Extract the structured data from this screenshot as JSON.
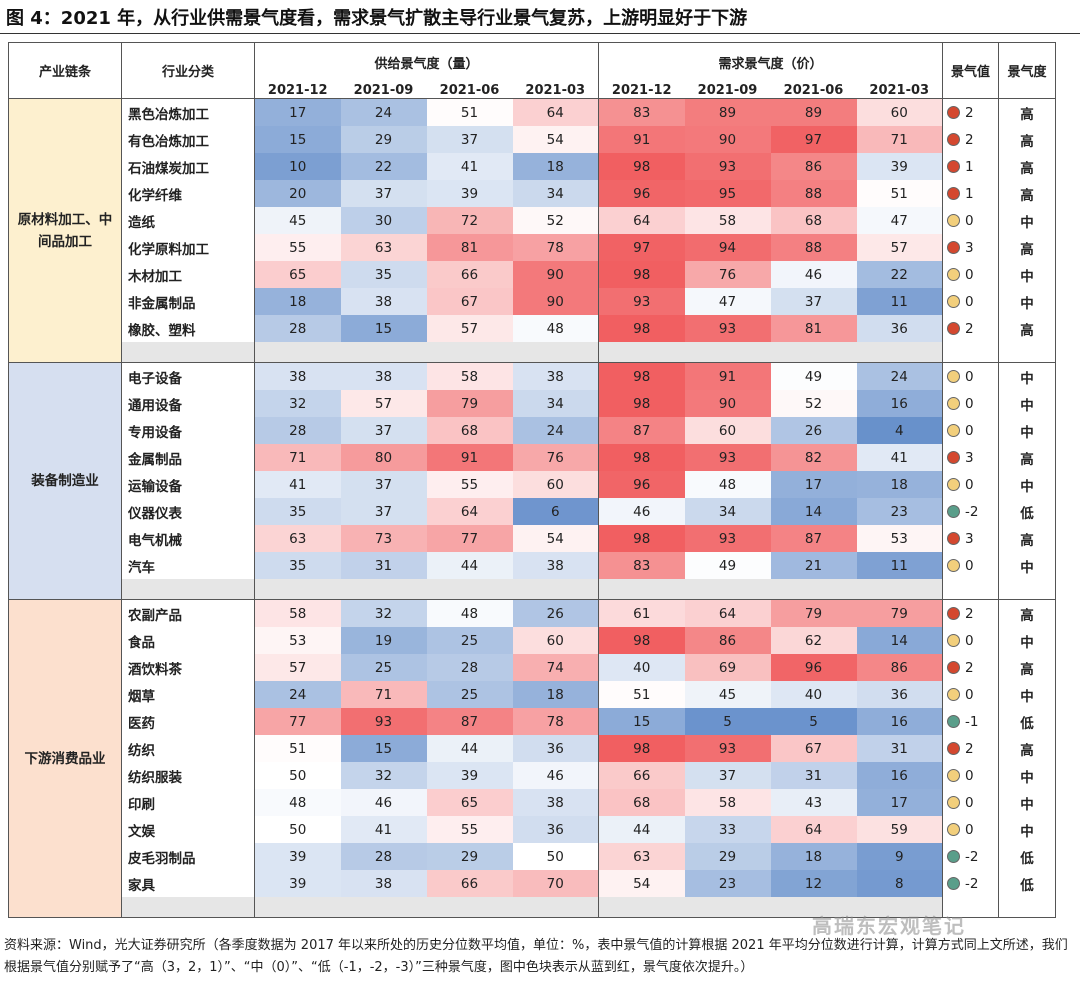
{
  "title": "图 4：2021 年，从行业供需景气度看，需求景气扩散主导行业景气复苏，上游明显好于下游",
  "headers": {
    "chain": "产业链条",
    "industry": "行业分类",
    "supply": "供给景气度（量）",
    "demand": "需求景气度（价）",
    "value": "景气值",
    "level": "景气度",
    "periods": [
      "2021-12",
      "2021-09",
      "2021-06",
      "2021-03"
    ]
  },
  "sections": [
    {
      "name": "原材料加工、中间品加工",
      "theme": "raw",
      "rows": [
        {
          "industry": "黑色冶炼加工",
          "supply": [
            17,
            24,
            51,
            64
          ],
          "demand": [
            83,
            89,
            89,
            60
          ],
          "value": "2",
          "level": "高"
        },
        {
          "industry": "有色冶炼加工",
          "supply": [
            15,
            29,
            37,
            54
          ],
          "demand": [
            91,
            90,
            97,
            71
          ],
          "value": "2",
          "level": "高"
        },
        {
          "industry": "石油煤炭加工",
          "supply": [
            10,
            22,
            41,
            18
          ],
          "demand": [
            98,
            93,
            86,
            39
          ],
          "value": "1",
          "level": "高"
        },
        {
          "industry": "化学纤维",
          "supply": [
            20,
            37,
            39,
            34
          ],
          "demand": [
            96,
            95,
            88,
            51
          ],
          "value": "1",
          "level": "高"
        },
        {
          "industry": "造纸",
          "supply": [
            45,
            30,
            72,
            52
          ],
          "demand": [
            64,
            58,
            68,
            47
          ],
          "value": "0",
          "level": "中"
        },
        {
          "industry": "化学原料加工",
          "supply": [
            55,
            63,
            81,
            78
          ],
          "demand": [
            97,
            94,
            88,
            57
          ],
          "value": "3",
          "level": "高"
        },
        {
          "industry": "木材加工",
          "supply": [
            65,
            35,
            66,
            90
          ],
          "demand": [
            98,
            76,
            46,
            22
          ],
          "value": "0",
          "level": "中"
        },
        {
          "industry": "非金属制品",
          "supply": [
            18,
            38,
            67,
            90
          ],
          "demand": [
            93,
            47,
            37,
            11
          ],
          "value": "0",
          "level": "中"
        },
        {
          "industry": "橡胶、塑料",
          "supply": [
            28,
            15,
            57,
            48
          ],
          "demand": [
            98,
            93,
            81,
            36
          ],
          "value": "2",
          "level": "高"
        }
      ]
    },
    {
      "name": "装备制造业",
      "theme": "equip",
      "rows": [
        {
          "industry": "电子设备",
          "supply": [
            38,
            38,
            58,
            38
          ],
          "demand": [
            98,
            91,
            49,
            24
          ],
          "value": "0",
          "level": "中"
        },
        {
          "industry": "通用设备",
          "supply": [
            32,
            57,
            79,
            34
          ],
          "demand": [
            98,
            90,
            52,
            16
          ],
          "value": "0",
          "level": "中"
        },
        {
          "industry": "专用设备",
          "supply": [
            28,
            37,
            68,
            24
          ],
          "demand": [
            87,
            60,
            26,
            4
          ],
          "value": "0",
          "level": "中"
        },
        {
          "industry": "金属制品",
          "supply": [
            71,
            80,
            91,
            76
          ],
          "demand": [
            98,
            93,
            82,
            41
          ],
          "value": "3",
          "level": "高"
        },
        {
          "industry": "运输设备",
          "supply": [
            41,
            37,
            55,
            60
          ],
          "demand": [
            96,
            48,
            17,
            18
          ],
          "value": "0",
          "level": "中"
        },
        {
          "industry": "仪器仪表",
          "supply": [
            35,
            37,
            64,
            6
          ],
          "demand": [
            46,
            34,
            14,
            23
          ],
          "value": "-2",
          "level": "低"
        },
        {
          "industry": "电气机械",
          "supply": [
            63,
            73,
            77,
            54
          ],
          "demand": [
            98,
            93,
            87,
            53
          ],
          "value": "3",
          "level": "高"
        },
        {
          "industry": "汽车",
          "supply": [
            35,
            31,
            44,
            38
          ],
          "demand": [
            83,
            49,
            21,
            11
          ],
          "value": "0",
          "level": "中"
        }
      ]
    },
    {
      "name": "下游消费品业",
      "theme": "cons",
      "rows": [
        {
          "industry": "农副产品",
          "supply": [
            58,
            32,
            48,
            26
          ],
          "demand": [
            61,
            64,
            79,
            79
          ],
          "value": "2",
          "level": "高"
        },
        {
          "industry": "食品",
          "supply": [
            53,
            19,
            25,
            60
          ],
          "demand": [
            98,
            86,
            62,
            14
          ],
          "value": "0",
          "level": "中"
        },
        {
          "industry": "酒饮料茶",
          "supply": [
            57,
            25,
            28,
            74
          ],
          "demand": [
            40,
            69,
            96,
            86
          ],
          "value": "2",
          "level": "高"
        },
        {
          "industry": "烟草",
          "supply": [
            24,
            71,
            25,
            18
          ],
          "demand": [
            51,
            45,
            40,
            36
          ],
          "value": "0",
          "level": "中"
        },
        {
          "industry": "医药",
          "supply": [
            77,
            93,
            87,
            78
          ],
          "demand": [
            15,
            5,
            5,
            16
          ],
          "value": "-1",
          "level": "低"
        },
        {
          "industry": "纺织",
          "supply": [
            51,
            15,
            44,
            36
          ],
          "demand": [
            98,
            93,
            67,
            31
          ],
          "value": "2",
          "level": "高"
        },
        {
          "industry": "纺织服装",
          "supply": [
            50,
            32,
            39,
            46
          ],
          "demand": [
            66,
            37,
            31,
            16
          ],
          "value": "0",
          "level": "中"
        },
        {
          "industry": "印刷",
          "supply": [
            48,
            46,
            65,
            38
          ],
          "demand": [
            68,
            58,
            43,
            17
          ],
          "value": "0",
          "level": "中"
        },
        {
          "industry": "文娱",
          "supply": [
            50,
            41,
            55,
            36
          ],
          "demand": [
            44,
            33,
            64,
            59
          ],
          "value": "0",
          "level": "中"
        },
        {
          "industry": "皮毛羽制品",
          "supply": [
            39,
            28,
            29,
            50
          ],
          "demand": [
            63,
            29,
            18,
            9
          ],
          "value": "-2",
          "level": "低"
        },
        {
          "industry": "家具",
          "supply": [
            39,
            38,
            66,
            70
          ],
          "demand": [
            54,
            23,
            12,
            8
          ],
          "value": "-2",
          "level": "低"
        }
      ]
    }
  ],
  "colors": {
    "low": "#5b87c7",
    "mid": "#ffffff",
    "high": "#f0585a"
  },
  "watermark": "高瑞东宏观笔记",
  "footer": "资料来源：Wind，光大证券研究所（各季度数据为 2017 年以来所处的历史分位数平均值，单位：%，表中景气值的计算根据 2021 年平均分位数进行计算，计算方式同上文所述，我们根据景气值分别赋予了“高（3，2，1）”、“中（0）”、“低（-1，-2，-3）”三种景气度，图中色块表示从蓝到红，景气度依次提升。）"
}
